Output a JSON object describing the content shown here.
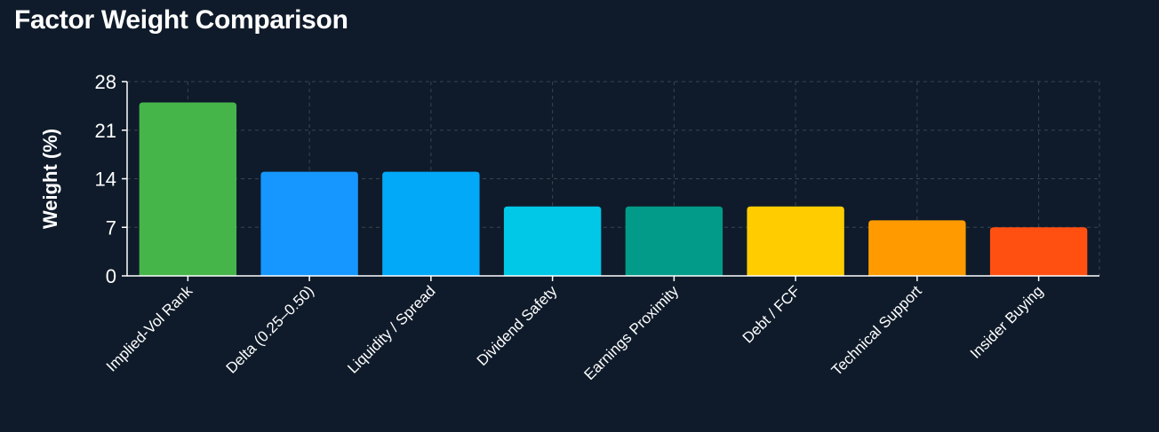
{
  "chart_data": {
    "type": "bar",
    "title": "Factor Weight Comparison",
    "xlabel": "",
    "ylabel": "Weight (%)",
    "ylim": [
      0,
      28
    ],
    "yticks": [
      0,
      7,
      14,
      21,
      28
    ],
    "grid": true,
    "categories": [
      "Implied-Vol Rank",
      "Delta (0.25–0.50)",
      "Liquidity / Spread",
      "Dividend Safety",
      "Earnings Proximity",
      "Debt / FCF",
      "Technical Support",
      "Insider Buying"
    ],
    "values": [
      25,
      15,
      15,
      10,
      10,
      10,
      8,
      7
    ],
    "colors": [
      "#46b549",
      "#1597ff",
      "#03a9f9",
      "#00c8e6",
      "#029b89",
      "#ffcc00",
      "#ff9b00",
      "#ff5012"
    ]
  },
  "theme": {
    "background": "#0f1b2a",
    "text": "#ffffff",
    "grid": "#3a4350",
    "axis": "#ffffff"
  }
}
